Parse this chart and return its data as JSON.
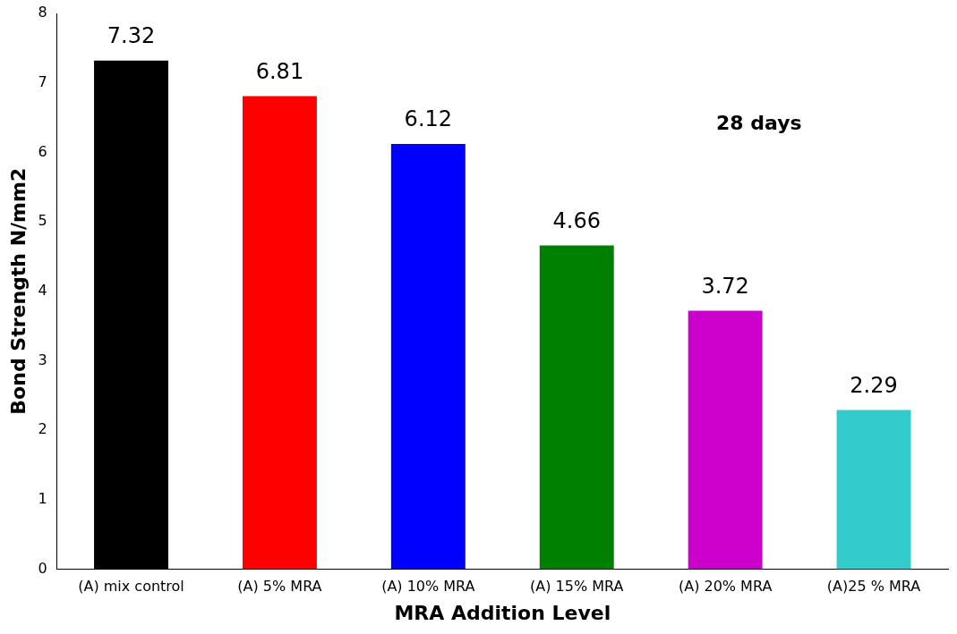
{
  "chart_data": {
    "type": "bar",
    "xlabel": "MRA Addition Level",
    "ylabel": "Bond Strength N/mm2",
    "categories": [
      "(A) mix control",
      "(A) 5% MRA",
      "(A) 10% MRA",
      "(A) 15% MRA",
      "(A) 20% MRA",
      "(A)25 % MRA"
    ],
    "values": [
      7.32,
      6.81,
      6.12,
      4.66,
      3.72,
      2.29
    ],
    "colors": [
      "#000000",
      "#ff0000",
      "#0000ff",
      "#008000",
      "#cc00cc",
      "#33cccc"
    ],
    "ylim": [
      0,
      8
    ],
    "yticks": [
      0,
      1,
      2,
      3,
      4,
      5,
      6,
      7,
      8
    ],
    "grid": false,
    "legend": false,
    "data_labels": true,
    "annotations": [
      "28 days"
    ]
  }
}
